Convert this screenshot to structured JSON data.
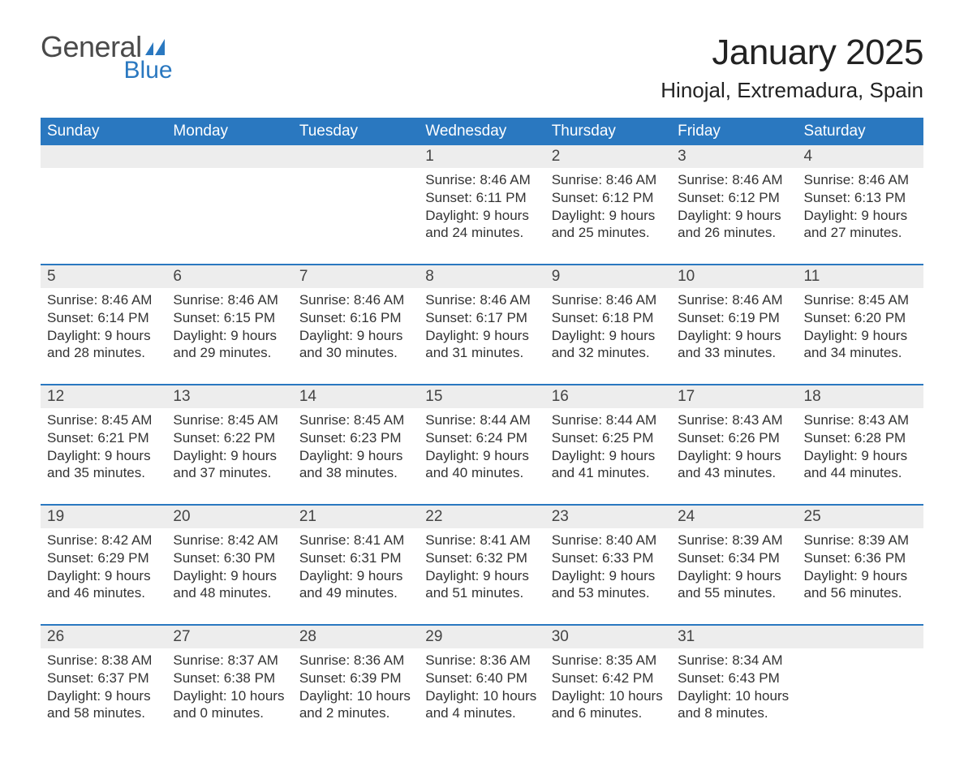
{
  "logo": {
    "text1": "General",
    "text2": "Blue",
    "flag_color": "#2a78c0"
  },
  "title": "January 2025",
  "location": "Hinojal, Extremadura, Spain",
  "colors": {
    "header_bg": "#2a78c0",
    "header_text": "#ffffff",
    "daynum_bg": "#ededed",
    "week_border": "#2a78c0",
    "body_text": "#333333"
  },
  "days_of_week": [
    "Sunday",
    "Monday",
    "Tuesday",
    "Wednesday",
    "Thursday",
    "Friday",
    "Saturday"
  ],
  "weeks": [
    [
      {
        "empty": true
      },
      {
        "empty": true
      },
      {
        "empty": true
      },
      {
        "n": "1",
        "sunrise": "Sunrise: 8:46 AM",
        "sunset": "Sunset: 6:11 PM",
        "d1": "Daylight: 9 hours",
        "d2": "and 24 minutes."
      },
      {
        "n": "2",
        "sunrise": "Sunrise: 8:46 AM",
        "sunset": "Sunset: 6:12 PM",
        "d1": "Daylight: 9 hours",
        "d2": "and 25 minutes."
      },
      {
        "n": "3",
        "sunrise": "Sunrise: 8:46 AM",
        "sunset": "Sunset: 6:12 PM",
        "d1": "Daylight: 9 hours",
        "d2": "and 26 minutes."
      },
      {
        "n": "4",
        "sunrise": "Sunrise: 8:46 AM",
        "sunset": "Sunset: 6:13 PM",
        "d1": "Daylight: 9 hours",
        "d2": "and 27 minutes."
      }
    ],
    [
      {
        "n": "5",
        "sunrise": "Sunrise: 8:46 AM",
        "sunset": "Sunset: 6:14 PM",
        "d1": "Daylight: 9 hours",
        "d2": "and 28 minutes."
      },
      {
        "n": "6",
        "sunrise": "Sunrise: 8:46 AM",
        "sunset": "Sunset: 6:15 PM",
        "d1": "Daylight: 9 hours",
        "d2": "and 29 minutes."
      },
      {
        "n": "7",
        "sunrise": "Sunrise: 8:46 AM",
        "sunset": "Sunset: 6:16 PM",
        "d1": "Daylight: 9 hours",
        "d2": "and 30 minutes."
      },
      {
        "n": "8",
        "sunrise": "Sunrise: 8:46 AM",
        "sunset": "Sunset: 6:17 PM",
        "d1": "Daylight: 9 hours",
        "d2": "and 31 minutes."
      },
      {
        "n": "9",
        "sunrise": "Sunrise: 8:46 AM",
        "sunset": "Sunset: 6:18 PM",
        "d1": "Daylight: 9 hours",
        "d2": "and 32 minutes."
      },
      {
        "n": "10",
        "sunrise": "Sunrise: 8:46 AM",
        "sunset": "Sunset: 6:19 PM",
        "d1": "Daylight: 9 hours",
        "d2": "and 33 minutes."
      },
      {
        "n": "11",
        "sunrise": "Sunrise: 8:45 AM",
        "sunset": "Sunset: 6:20 PM",
        "d1": "Daylight: 9 hours",
        "d2": "and 34 minutes."
      }
    ],
    [
      {
        "n": "12",
        "sunrise": "Sunrise: 8:45 AM",
        "sunset": "Sunset: 6:21 PM",
        "d1": "Daylight: 9 hours",
        "d2": "and 35 minutes."
      },
      {
        "n": "13",
        "sunrise": "Sunrise: 8:45 AM",
        "sunset": "Sunset: 6:22 PM",
        "d1": "Daylight: 9 hours",
        "d2": "and 37 minutes."
      },
      {
        "n": "14",
        "sunrise": "Sunrise: 8:45 AM",
        "sunset": "Sunset: 6:23 PM",
        "d1": "Daylight: 9 hours",
        "d2": "and 38 minutes."
      },
      {
        "n": "15",
        "sunrise": "Sunrise: 8:44 AM",
        "sunset": "Sunset: 6:24 PM",
        "d1": "Daylight: 9 hours",
        "d2": "and 40 minutes."
      },
      {
        "n": "16",
        "sunrise": "Sunrise: 8:44 AM",
        "sunset": "Sunset: 6:25 PM",
        "d1": "Daylight: 9 hours",
        "d2": "and 41 minutes."
      },
      {
        "n": "17",
        "sunrise": "Sunrise: 8:43 AM",
        "sunset": "Sunset: 6:26 PM",
        "d1": "Daylight: 9 hours",
        "d2": "and 43 minutes."
      },
      {
        "n": "18",
        "sunrise": "Sunrise: 8:43 AM",
        "sunset": "Sunset: 6:28 PM",
        "d1": "Daylight: 9 hours",
        "d2": "and 44 minutes."
      }
    ],
    [
      {
        "n": "19",
        "sunrise": "Sunrise: 8:42 AM",
        "sunset": "Sunset: 6:29 PM",
        "d1": "Daylight: 9 hours",
        "d2": "and 46 minutes."
      },
      {
        "n": "20",
        "sunrise": "Sunrise: 8:42 AM",
        "sunset": "Sunset: 6:30 PM",
        "d1": "Daylight: 9 hours",
        "d2": "and 48 minutes."
      },
      {
        "n": "21",
        "sunrise": "Sunrise: 8:41 AM",
        "sunset": "Sunset: 6:31 PM",
        "d1": "Daylight: 9 hours",
        "d2": "and 49 minutes."
      },
      {
        "n": "22",
        "sunrise": "Sunrise: 8:41 AM",
        "sunset": "Sunset: 6:32 PM",
        "d1": "Daylight: 9 hours",
        "d2": "and 51 minutes."
      },
      {
        "n": "23",
        "sunrise": "Sunrise: 8:40 AM",
        "sunset": "Sunset: 6:33 PM",
        "d1": "Daylight: 9 hours",
        "d2": "and 53 minutes."
      },
      {
        "n": "24",
        "sunrise": "Sunrise: 8:39 AM",
        "sunset": "Sunset: 6:34 PM",
        "d1": "Daylight: 9 hours",
        "d2": "and 55 minutes."
      },
      {
        "n": "25",
        "sunrise": "Sunrise: 8:39 AM",
        "sunset": "Sunset: 6:36 PM",
        "d1": "Daylight: 9 hours",
        "d2": "and 56 minutes."
      }
    ],
    [
      {
        "n": "26",
        "sunrise": "Sunrise: 8:38 AM",
        "sunset": "Sunset: 6:37 PM",
        "d1": "Daylight: 9 hours",
        "d2": "and 58 minutes."
      },
      {
        "n": "27",
        "sunrise": "Sunrise: 8:37 AM",
        "sunset": "Sunset: 6:38 PM",
        "d1": "Daylight: 10 hours",
        "d2": "and 0 minutes."
      },
      {
        "n": "28",
        "sunrise": "Sunrise: 8:36 AM",
        "sunset": "Sunset: 6:39 PM",
        "d1": "Daylight: 10 hours",
        "d2": "and 2 minutes."
      },
      {
        "n": "29",
        "sunrise": "Sunrise: 8:36 AM",
        "sunset": "Sunset: 6:40 PM",
        "d1": "Daylight: 10 hours",
        "d2": "and 4 minutes."
      },
      {
        "n": "30",
        "sunrise": "Sunrise: 8:35 AM",
        "sunset": "Sunset: 6:42 PM",
        "d1": "Daylight: 10 hours",
        "d2": "and 6 minutes."
      },
      {
        "n": "31",
        "sunrise": "Sunrise: 8:34 AM",
        "sunset": "Sunset: 6:43 PM",
        "d1": "Daylight: 10 hours",
        "d2": "and 8 minutes."
      },
      {
        "empty": true
      }
    ]
  ]
}
